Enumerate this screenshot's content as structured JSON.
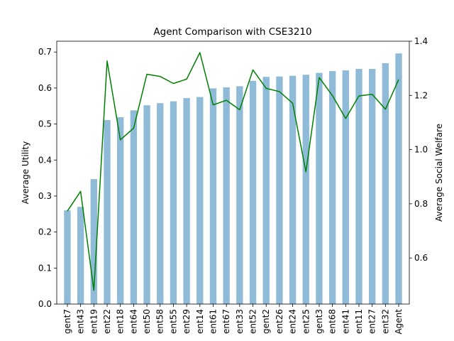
{
  "chart_data": {
    "type": "bar",
    "title": "Agent Comparison with CSE3210",
    "xlabel": "",
    "ylabel": "Average Utility",
    "y2label": "Average Social Welfare",
    "ylim": [
      0.0,
      0.73
    ],
    "y2lim": [
      0.43,
      1.4
    ],
    "yticks": [
      "0.0",
      "0.1",
      "0.2",
      "0.3",
      "0.4",
      "0.5",
      "0.6",
      "0.7"
    ],
    "y2ticks": [
      "0.6",
      "0.8",
      "1.0",
      "1.2",
      "1.4"
    ],
    "grid": false,
    "categories": [
      "gent7",
      "ent43",
      "ent19",
      "ent22",
      "ent18",
      "ent64",
      "ent50",
      "ent58",
      "ent55",
      "ent29",
      "ent14",
      "ent61",
      "ent67",
      "ent33",
      "ent52",
      "gent2",
      "ent26",
      "ent24",
      "ent25",
      "gent3",
      "ent68",
      "ent41",
      "ent11",
      "ent27",
      "ent32",
      "Agent"
    ],
    "series": [
      {
        "axis": "left",
        "kind": "bar",
        "color": "#8fbbd9",
        "values": [
          0.26,
          0.27,
          0.347,
          0.511,
          0.519,
          0.538,
          0.552,
          0.558,
          0.563,
          0.572,
          0.575,
          0.599,
          0.602,
          0.605,
          0.62,
          0.631,
          0.632,
          0.634,
          0.637,
          0.642,
          0.647,
          0.649,
          0.653,
          0.653,
          0.669,
          0.696
        ]
      },
      {
        "axis": "right",
        "kind": "line",
        "color": "#008000",
        "values": [
          0.773,
          0.846,
          0.481,
          1.327,
          1.036,
          1.079,
          1.278,
          1.27,
          1.244,
          1.26,
          1.358,
          1.165,
          1.182,
          1.147,
          1.294,
          1.226,
          1.214,
          1.171,
          0.918,
          1.266,
          1.199,
          1.115,
          1.198,
          1.204,
          1.149,
          1.259
        ]
      }
    ]
  }
}
